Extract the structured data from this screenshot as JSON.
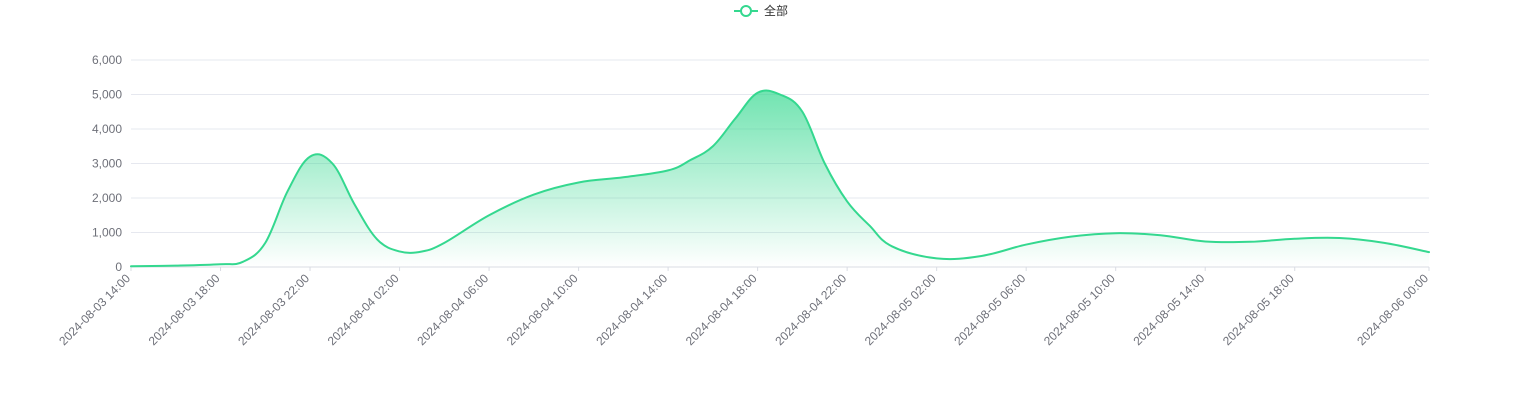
{
  "legend": {
    "items": [
      {
        "label": "全部",
        "color": "#34d88f",
        "icon": "circle-line-icon"
      }
    ]
  },
  "chart_data": {
    "type": "area",
    "series": [
      {
        "name": "全部",
        "color": "#34d88f",
        "x": [
          "2024-08-03 14:00",
          "2024-08-03 16:00",
          "2024-08-03 18:00",
          "2024-08-03 19:00",
          "2024-08-03 20:00",
          "2024-08-03 21:00",
          "2024-08-03 22:00",
          "2024-08-03 23:00",
          "2024-08-04 00:00",
          "2024-08-04 01:00",
          "2024-08-04 02:00",
          "2024-08-04 03:00",
          "2024-08-04 04:00",
          "2024-08-04 06:00",
          "2024-08-04 08:00",
          "2024-08-04 10:00",
          "2024-08-04 12:00",
          "2024-08-04 14:00",
          "2024-08-04 15:00",
          "2024-08-04 16:00",
          "2024-08-04 17:00",
          "2024-08-04 18:00",
          "2024-08-04 19:00",
          "2024-08-04 20:00",
          "2024-08-04 21:00",
          "2024-08-04 22:00",
          "2024-08-04 23:00",
          "2024-08-05 00:00",
          "2024-08-05 02:00",
          "2024-08-05 04:00",
          "2024-08-05 06:00",
          "2024-08-05 08:00",
          "2024-08-05 10:00",
          "2024-08-05 12:00",
          "2024-08-05 14:00",
          "2024-08-05 16:00",
          "2024-08-05 18:00",
          "2024-08-05 20:00",
          "2024-08-05 22:00",
          "2024-08-06 00:00"
        ],
        "values": [
          20,
          40,
          80,
          150,
          700,
          2200,
          3200,
          3000,
          1800,
          800,
          450,
          450,
          700,
          1500,
          2100,
          2450,
          2600,
          2800,
          3100,
          3500,
          4300,
          5050,
          5000,
          4500,
          3000,
          1900,
          1200,
          600,
          250,
          320,
          650,
          880,
          980,
          920,
          740,
          730,
          820,
          840,
          700,
          430
        ]
      }
    ],
    "x_ticks": [
      "2024-08-03 14:00",
      "2024-08-03 18:00",
      "2024-08-03 22:00",
      "2024-08-04 02:00",
      "2024-08-04 06:00",
      "2024-08-04 10:00",
      "2024-08-04 14:00",
      "2024-08-04 18:00",
      "2024-08-04 22:00",
      "2024-08-05 02:00",
      "2024-08-05 06:00",
      "2024-08-05 10:00",
      "2024-08-05 14:00",
      "2024-08-05 18:00",
      "2024-08-06 00:00"
    ],
    "y_ticks": [
      0,
      1000,
      2000,
      3000,
      4000,
      5000,
      6000
    ],
    "y_tick_labels": [
      "0",
      "1,000",
      "2,000",
      "3,000",
      "4,000",
      "5,000",
      "6,000"
    ],
    "ylim": [
      0,
      6000
    ],
    "xlim": [
      "2024-08-03 14:00",
      "2024-08-06 00:00"
    ],
    "grid": true,
    "legend_position": "top-center",
    "title": "",
    "xlabel": "",
    "ylabel": ""
  }
}
